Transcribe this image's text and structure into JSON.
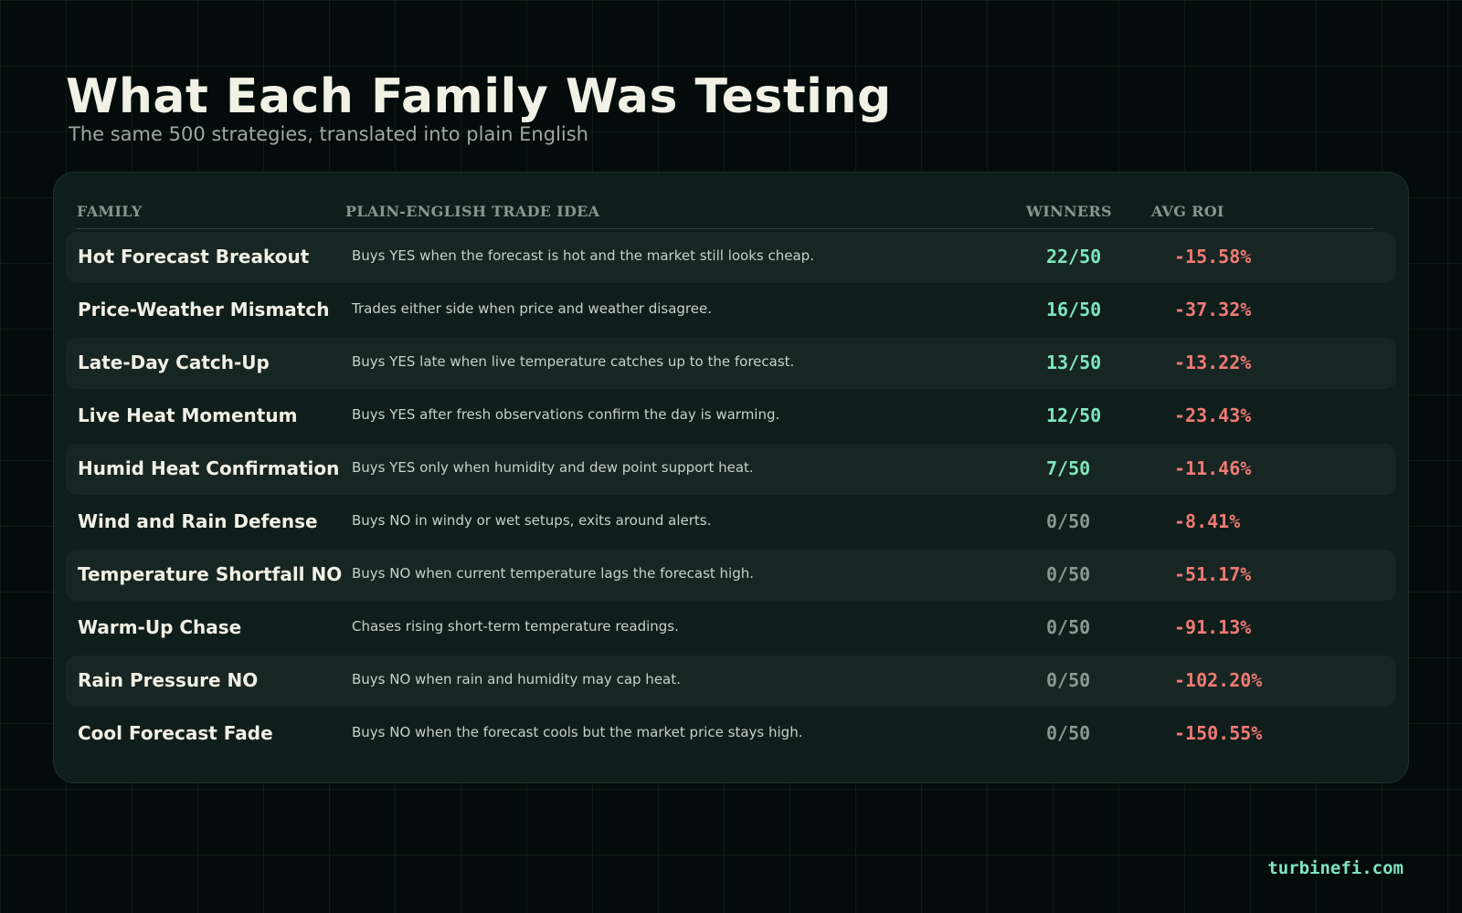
{
  "page": {
    "title": "What Each Family Was Testing",
    "subtitle": "The same 500 strategies, translated into plain English"
  },
  "brand": "turbinefi.com",
  "colors": {
    "background": "#040c0b",
    "card": "#101e1b",
    "winners_positive": "#7fe6be",
    "winners_zero": "#8c9792",
    "roi_negative": "#f07a74",
    "brand": "#7fe6be"
  },
  "chart_data": {
    "type": "table",
    "columns": [
      "FAMILY",
      "PLAIN-ENGLISH TRADE IDEA",
      "WINNERS",
      "AVG ROI"
    ],
    "rows": [
      {
        "family": "Hot Forecast Breakout",
        "idea": "Buys YES when the forecast is hot and the market still looks cheap.",
        "winners": "22/50",
        "avg_roi": "-15.58%"
      },
      {
        "family": "Price-Weather Mismatch",
        "idea": "Trades either side when price and weather disagree.",
        "winners": "16/50",
        "avg_roi": "-37.32%"
      },
      {
        "family": "Late-Day Catch-Up",
        "idea": "Buys YES late when live temperature catches up to the forecast.",
        "winners": "13/50",
        "avg_roi": "-13.22%"
      },
      {
        "family": "Live Heat Momentum",
        "idea": "Buys YES after fresh observations confirm the day is warming.",
        "winners": "12/50",
        "avg_roi": "-23.43%"
      },
      {
        "family": "Humid Heat Confirmation",
        "idea": "Buys YES only when humidity and dew point support heat.",
        "winners": "7/50",
        "avg_roi": "-11.46%"
      },
      {
        "family": "Wind and Rain Defense",
        "idea": "Buys NO in windy or wet setups, exits around alerts.",
        "winners": "0/50",
        "avg_roi": "-8.41%"
      },
      {
        "family": "Temperature Shortfall NO",
        "idea": "Buys NO when current temperature lags the forecast high.",
        "winners": "0/50",
        "avg_roi": "-51.17%"
      },
      {
        "family": "Warm-Up Chase",
        "idea": "Chases rising short-term temperature readings.",
        "winners": "0/50",
        "avg_roi": "-91.13%"
      },
      {
        "family": "Rain Pressure NO",
        "idea": "Buys NO when rain and humidity may cap heat.",
        "winners": "0/50",
        "avg_roi": "-102.20%"
      },
      {
        "family": "Cool Forecast Fade",
        "idea": "Buys NO when the forecast cools but the market price stays high.",
        "winners": "0/50",
        "avg_roi": "-150.55%"
      }
    ]
  }
}
